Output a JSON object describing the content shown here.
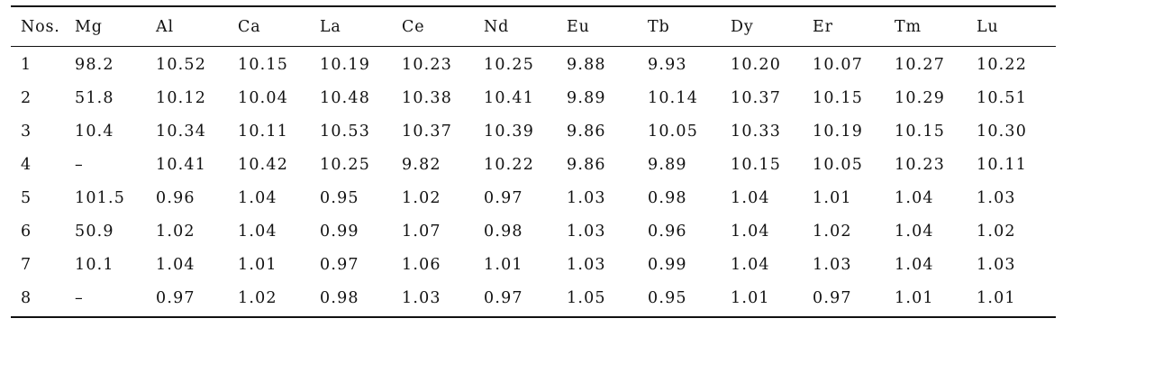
{
  "table": {
    "headers": [
      "Nos.",
      "Mg",
      "Al",
      "Ca",
      "La",
      "Ce",
      "Nd",
      "Eu",
      "Tb",
      "Dy",
      "Er",
      "Tm",
      "Lu"
    ],
    "rows": [
      [
        "1",
        "98.2",
        "10.52",
        "10.15",
        "10.19",
        "10.23",
        "10.25",
        "9.88",
        "9.93",
        "10.20",
        "10.07",
        "10.27",
        "10.22"
      ],
      [
        "2",
        "51.8",
        "10.12",
        "10.04",
        "10.48",
        "10.38",
        "10.41",
        "9.89",
        "10.14",
        "10.37",
        "10.15",
        "10.29",
        "10.51"
      ],
      [
        "3",
        "10.4",
        "10.34",
        "10.11",
        "10.53",
        "10.37",
        "10.39",
        "9.86",
        "10.05",
        "10.33",
        "10.19",
        "10.15",
        "10.30"
      ],
      [
        "4",
        "–",
        "10.41",
        "10.42",
        "10.25",
        "9.82",
        "10.22",
        "9.86",
        "9.89",
        "10.15",
        "10.05",
        "10.23",
        "10.11"
      ],
      [
        "5",
        "101.5",
        "0.96",
        "1.04",
        "0.95",
        "1.02",
        "0.97",
        "1.03",
        "0.98",
        "1.04",
        "1.01",
        "1.04",
        "1.03"
      ],
      [
        "6",
        "50.9",
        "1.02",
        "1.04",
        "0.99",
        "1.07",
        "0.98",
        "1.03",
        "0.96",
        "1.04",
        "1.02",
        "1.04",
        "1.02"
      ],
      [
        "7",
        "10.1",
        "1.04",
        "1.01",
        "0.97",
        "1.06",
        "1.01",
        "1.03",
        "0.99",
        "1.04",
        "1.03",
        "1.04",
        "1.03"
      ],
      [
        "8",
        "–",
        "0.97",
        "1.02",
        "0.98",
        "1.03",
        "0.97",
        "1.05",
        "0.95",
        "1.01",
        "0.97",
        "1.01",
        "1.01"
      ]
    ]
  }
}
